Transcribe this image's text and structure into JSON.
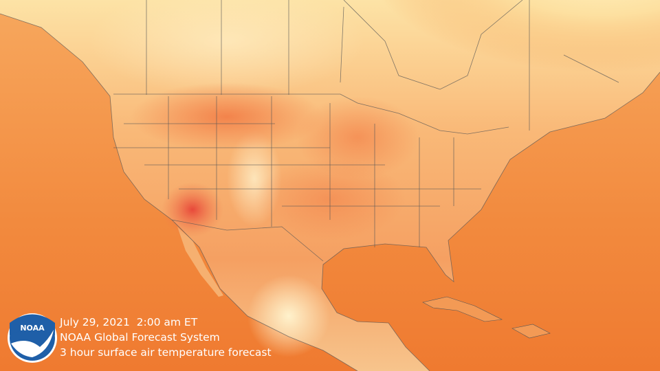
{
  "caption": {
    "date": "July 29, 2021  2:00 am ET",
    "source": "NOAA Global Forecast System",
    "description": "3 hour surface air temperature forecast"
  },
  "logo": {
    "text": "NOAA"
  }
}
